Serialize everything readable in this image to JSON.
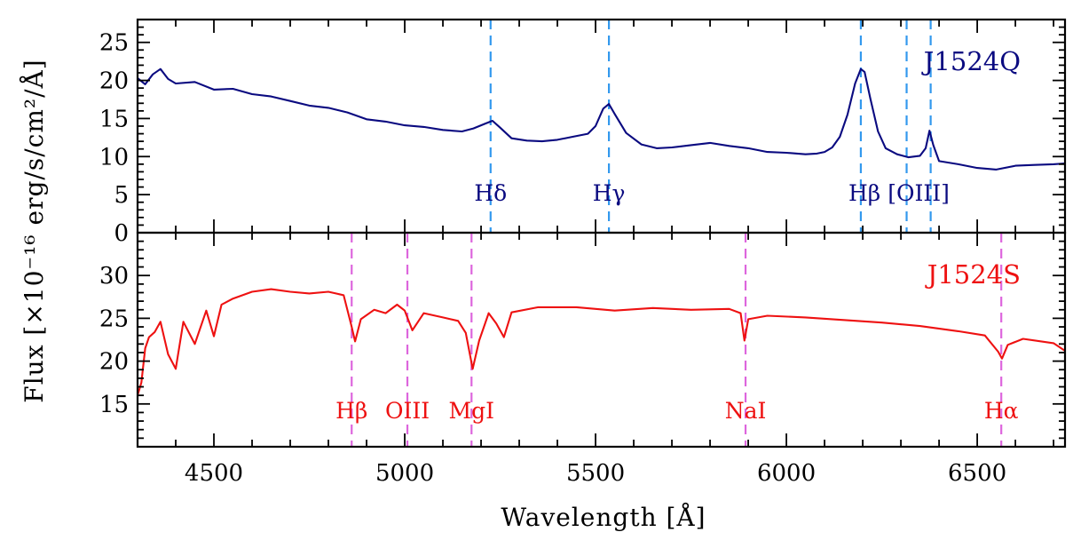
{
  "chart_data": {
    "type": "line",
    "shared_x": {
      "label": "Wavelength [Å]",
      "range": [
        4300,
        6730
      ],
      "ticks": [
        4500,
        5000,
        5500,
        6000,
        6500
      ],
      "tick_labels": [
        "4500",
        "5000",
        "5500",
        "6000",
        "6500"
      ]
    },
    "ylabel": "Flux [×10⁻¹⁶ erg/s/cm²/Å]",
    "panels": [
      {
        "name": "J1524Q",
        "color": "#0a0a80",
        "marker_color": "#3399ee",
        "ylim": [
          0,
          28
        ],
        "yticks": [
          0,
          5,
          10,
          15,
          20,
          25
        ],
        "ytick_labels": [
          "0",
          "5",
          "10",
          "15",
          "20",
          "25"
        ],
        "spectrum": [
          [
            4300,
            20.3
          ],
          [
            4320,
            19.5
          ],
          [
            4340,
            20.8
          ],
          [
            4360,
            21.5
          ],
          [
            4380,
            20.2
          ],
          [
            4400,
            19.6
          ],
          [
            4450,
            19.8
          ],
          [
            4500,
            18.8
          ],
          [
            4550,
            18.9
          ],
          [
            4600,
            18.2
          ],
          [
            4650,
            17.9
          ],
          [
            4700,
            17.3
          ],
          [
            4750,
            16.7
          ],
          [
            4800,
            16.4
          ],
          [
            4850,
            15.8
          ],
          [
            4900,
            14.9
          ],
          [
            4950,
            14.6
          ],
          [
            5000,
            14.1
          ],
          [
            5050,
            13.9
          ],
          [
            5100,
            13.5
          ],
          [
            5150,
            13.3
          ],
          [
            5180,
            13.7
          ],
          [
            5210,
            14.3
          ],
          [
            5230,
            14.7
          ],
          [
            5250,
            13.8
          ],
          [
            5280,
            12.4
          ],
          [
            5320,
            12.1
          ],
          [
            5360,
            12.0
          ],
          [
            5400,
            12.2
          ],
          [
            5440,
            12.6
          ],
          [
            5480,
            13.0
          ],
          [
            5500,
            14.0
          ],
          [
            5520,
            16.3
          ],
          [
            5535,
            16.9
          ],
          [
            5550,
            15.6
          ],
          [
            5580,
            13.1
          ],
          [
            5620,
            11.6
          ],
          [
            5660,
            11.1
          ],
          [
            5700,
            11.2
          ],
          [
            5750,
            11.5
          ],
          [
            5800,
            11.8
          ],
          [
            5850,
            11.4
          ],
          [
            5900,
            11.1
          ],
          [
            5950,
            10.6
          ],
          [
            6000,
            10.5
          ],
          [
            6050,
            10.3
          ],
          [
            6080,
            10.4
          ],
          [
            6100,
            10.6
          ],
          [
            6120,
            11.2
          ],
          [
            6140,
            12.6
          ],
          [
            6160,
            15.5
          ],
          [
            6180,
            19.6
          ],
          [
            6195,
            21.5
          ],
          [
            6205,
            21.1
          ],
          [
            6220,
            17.6
          ],
          [
            6240,
            13.3
          ],
          [
            6260,
            11.1
          ],
          [
            6290,
            10.3
          ],
          [
            6320,
            9.9
          ],
          [
            6350,
            10.1
          ],
          [
            6365,
            11.1
          ],
          [
            6375,
            13.4
          ],
          [
            6385,
            11.5
          ],
          [
            6400,
            9.4
          ],
          [
            6450,
            9.0
          ],
          [
            6500,
            8.5
          ],
          [
            6550,
            8.3
          ],
          [
            6600,
            8.8
          ],
          [
            6650,
            8.9
          ],
          [
            6700,
            9.0
          ],
          [
            6730,
            9.1
          ]
        ],
        "lines": [
          {
            "label": "Hδ",
            "wavelength": 5225
          },
          {
            "label": "Hγ",
            "wavelength": 5535
          },
          {
            "label": "Hβ",
            "wavelength": 6195
          },
          {
            "label": "[",
            "wavelength": 6315
          },
          {
            "label": "OIII]",
            "wavelength": 6378
          }
        ],
        "line_labels": [
          {
            "text": "Hδ",
            "wavelength": 5225,
            "y": 4.2
          },
          {
            "text": "Hγ",
            "wavelength": 5535,
            "y": 4.2
          },
          {
            "text": "Hβ [OIII]",
            "wavelength": 6295,
            "y": 4.2
          }
        ]
      },
      {
        "name": "J1524S",
        "color": "#ee1111",
        "marker_color": "#dd66dd",
        "ylim": [
          10,
          35
        ],
        "yticks": [
          15,
          20,
          25,
          30
        ],
        "ytick_labels": [
          "15",
          "20",
          "25",
          "30"
        ],
        "spectrum": [
          [
            4300,
            16.0
          ],
          [
            4310,
            17.5
          ],
          [
            4320,
            21.5
          ],
          [
            4330,
            22.8
          ],
          [
            4345,
            23.4
          ],
          [
            4360,
            24.6
          ],
          [
            4380,
            20.8
          ],
          [
            4400,
            19.1
          ],
          [
            4420,
            24.6
          ],
          [
            4450,
            22.0
          ],
          [
            4480,
            25.9
          ],
          [
            4500,
            22.9
          ],
          [
            4520,
            26.6
          ],
          [
            4550,
            27.3
          ],
          [
            4600,
            28.1
          ],
          [
            4650,
            28.4
          ],
          [
            4700,
            28.1
          ],
          [
            4750,
            27.9
          ],
          [
            4800,
            28.1
          ],
          [
            4840,
            27.7
          ],
          [
            4860,
            24.2
          ],
          [
            4870,
            22.3
          ],
          [
            4885,
            24.9
          ],
          [
            4920,
            26.0
          ],
          [
            4950,
            25.6
          ],
          [
            4980,
            26.6
          ],
          [
            5000,
            25.9
          ],
          [
            5020,
            23.6
          ],
          [
            5050,
            25.6
          ],
          [
            5100,
            25.1
          ],
          [
            5140,
            24.7
          ],
          [
            5160,
            23.3
          ],
          [
            5178,
            19.1
          ],
          [
            5195,
            22.4
          ],
          [
            5220,
            25.6
          ],
          [
            5240,
            24.4
          ],
          [
            5260,
            22.8
          ],
          [
            5280,
            25.7
          ],
          [
            5350,
            26.3
          ],
          [
            5450,
            26.3
          ],
          [
            5550,
            25.9
          ],
          [
            5650,
            26.2
          ],
          [
            5750,
            26.0
          ],
          [
            5850,
            26.1
          ],
          [
            5880,
            25.6
          ],
          [
            5890,
            22.4
          ],
          [
            5900,
            24.9
          ],
          [
            5950,
            25.3
          ],
          [
            6050,
            25.1
          ],
          [
            6150,
            24.8
          ],
          [
            6250,
            24.5
          ],
          [
            6350,
            24.1
          ],
          [
            6450,
            23.5
          ],
          [
            6520,
            23.0
          ],
          [
            6555,
            21.1
          ],
          [
            6565,
            20.3
          ],
          [
            6580,
            21.9
          ],
          [
            6620,
            22.6
          ],
          [
            6700,
            22.1
          ],
          [
            6730,
            21.2
          ]
        ],
        "lines": [
          {
            "label": "Hβ",
            "wavelength": 4861
          },
          {
            "label": "OIII",
            "wavelength": 5007
          },
          {
            "label": "MgI",
            "wavelength": 5175
          },
          {
            "label": "NaI",
            "wavelength": 5893
          },
          {
            "label": "Hα",
            "wavelength": 6563
          }
        ],
        "line_labels": [
          {
            "text": "Hβ",
            "wavelength": 4861,
            "y": 13.3
          },
          {
            "text": "OIII",
            "wavelength": 5007,
            "y": 13.3
          },
          {
            "text": "MgI",
            "wavelength": 5175,
            "y": 13.3
          },
          {
            "text": "NaI",
            "wavelength": 5893,
            "y": 13.3
          },
          {
            "text": "Hα",
            "wavelength": 6563,
            "y": 13.3
          }
        ]
      }
    ]
  }
}
